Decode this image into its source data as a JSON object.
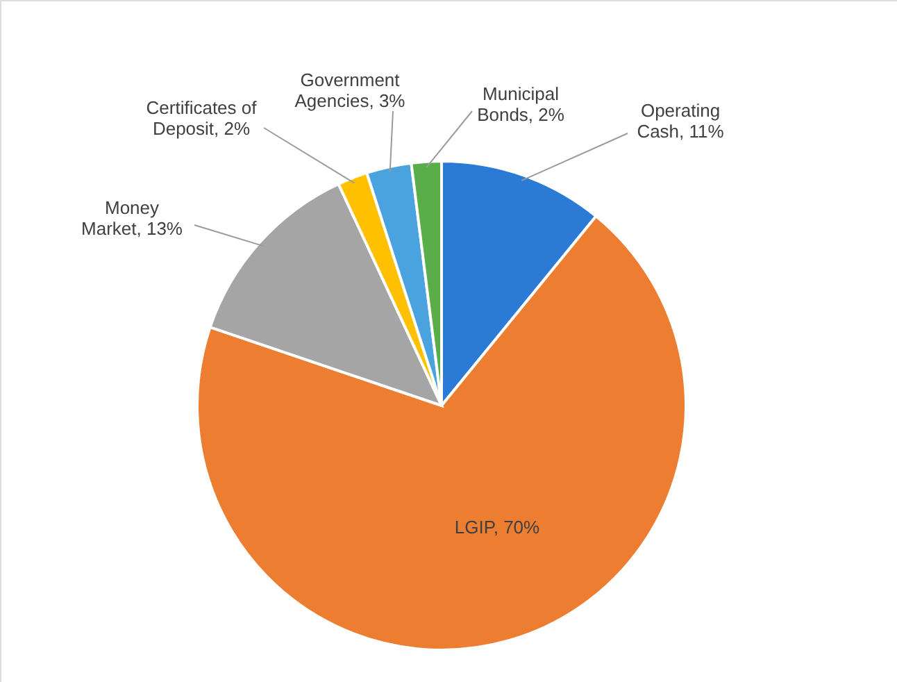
{
  "chart_data": {
    "type": "pie",
    "categories": [
      "Operating Cash",
      "LGIP",
      "Money Market",
      "Certificates of Deposit",
      "Government Agencies",
      "Municipal Bonds"
    ],
    "values": [
      11,
      70,
      13,
      2,
      3,
      2
    ],
    "value_labels": [
      "11%",
      "70%",
      "13%",
      "2%",
      "3%",
      "2%"
    ],
    "colors": [
      "#2b7bd6",
      "#ed7d31",
      "#a5a5a5",
      "#ffc000",
      "#4aa3df",
      "#5aae4a"
    ]
  }
}
